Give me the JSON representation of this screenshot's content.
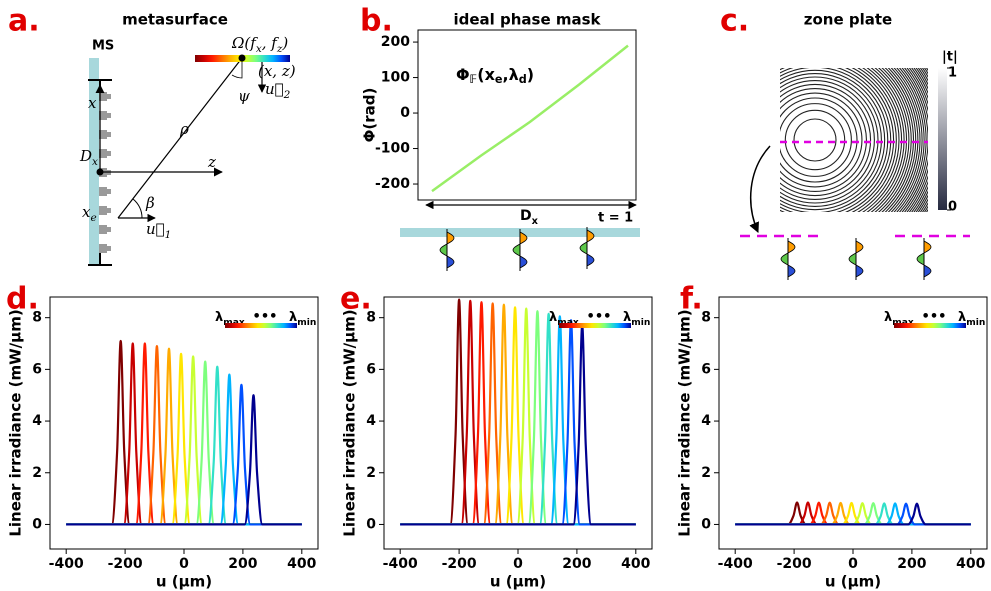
{
  "diagram": {
    "label": "a.",
    "title": "metasurface",
    "ms": "MS",
    "x": "x",
    "dx": [
      "D",
      "x"
    ],
    "z": "z",
    "rho": "ρ",
    "psi": "ψ",
    "beta": "β",
    "xe": [
      "x",
      "e"
    ],
    "u1": [
      "u⃗",
      "1"
    ],
    "u2": [
      "u⃗",
      "2"
    ],
    "omega": [
      "Ω(f",
      "x",
      ", f",
      "z",
      ")"
    ],
    "xz": "(x, z)"
  },
  "zone_plate": {
    "label": "c.",
    "title": "zone plate",
    "colorbar_label": "|t|",
    "colorbar_ticks": [
      0,
      1
    ]
  },
  "chart_data": [
    {
      "type": "line",
      "label": "b.",
      "title": "ideal phase mask",
      "ylabel": "Φ(rad)",
      "values": [
        -220,
        -120,
        -25,
        80,
        190
      ],
      "color": "#99ee66",
      "ylim": [
        -245,
        234
      ],
      "yticks": [
        -200,
        -100,
        0,
        100,
        200
      ],
      "annotation": [
        "Φ",
        "𝔽",
        "(x",
        "e",
        ",λ",
        "d",
        ")"
      ],
      "span_label": [
        "D",
        "x"
      ],
      "footnote": "t = 1"
    },
    {
      "type": "multiline",
      "label": "d.",
      "xlabel": "u (μm)",
      "ylabel": "Linear irradiance (mW/μm)",
      "xlim": [
        -455,
        455
      ],
      "xticks": [
        -400,
        -200,
        0,
        200,
        400
      ],
      "ylim": [
        -0.95,
        8.8
      ],
      "yticks": [
        0,
        2,
        4,
        6,
        8
      ],
      "legend": {
        "start": [
          "λ",
          "max"
        ],
        "dots": "•••",
        "end": [
          "λ",
          "min"
        ]
      },
      "series": [
        {
          "color": "#800000",
          "x": [
            -400,
            -245,
            -227,
            -215,
            -203,
            -185,
            400
          ],
          "values": [
            0,
            0,
            2.84,
            7.1,
            2.84,
            0,
            0
          ]
        },
        {
          "color": "#c80000",
          "x": [
            -400,
            -204,
            -186,
            -174,
            -162,
            -144,
            400
          ],
          "values": [
            0,
            0,
            2.8,
            7.0,
            2.8,
            0,
            0
          ]
        },
        {
          "color": "#ff1a00",
          "x": [
            -400,
            -163,
            -145,
            -133,
            -121,
            -103,
            400
          ],
          "values": [
            0,
            0,
            2.8,
            7.0,
            2.8,
            0,
            0
          ]
        },
        {
          "color": "#ff6400",
          "x": [
            -400,
            -122,
            -104,
            -92,
            -80,
            -62,
            400
          ],
          "values": [
            0,
            0,
            2.76,
            6.9,
            2.76,
            0,
            0
          ]
        },
        {
          "color": "#ffaa00",
          "x": [
            -400,
            -81,
            -63,
            -51,
            -39,
            -21,
            400
          ],
          "values": [
            0,
            0,
            2.72,
            6.8,
            2.72,
            0,
            0
          ]
        },
        {
          "color": "#ffe600",
          "x": [
            -400,
            -40,
            -22,
            -10,
            2,
            20,
            400
          ],
          "values": [
            0,
            0,
            2.64,
            6.6,
            2.64,
            0,
            0
          ]
        },
        {
          "color": "#c8ff32",
          "x": [
            -400,
            1,
            19,
            31,
            43,
            61,
            400
          ],
          "values": [
            0,
            0,
            2.6,
            6.5,
            2.6,
            0,
            0
          ]
        },
        {
          "color": "#7dff7d",
          "x": [
            -400,
            42,
            60,
            72,
            84,
            102,
            400
          ],
          "values": [
            0,
            0,
            2.52,
            6.3,
            2.52,
            0,
            0
          ]
        },
        {
          "color": "#32e0c8",
          "x": [
            -400,
            83,
            101,
            113,
            125,
            143,
            400
          ],
          "values": [
            0,
            0,
            2.44,
            6.1,
            2.44,
            0,
            0
          ]
        },
        {
          "color": "#00b4ff",
          "x": [
            -400,
            124,
            142,
            154,
            166,
            184,
            400
          ],
          "values": [
            0,
            0,
            2.32,
            5.8,
            2.32,
            0,
            0
          ]
        },
        {
          "color": "#0050ff",
          "x": [
            -400,
            165,
            183,
            195,
            207,
            225,
            400
          ],
          "values": [
            0,
            0,
            2.16,
            5.4,
            2.16,
            0,
            0
          ]
        },
        {
          "color": "#00008f",
          "x": [
            -400,
            206,
            224,
            236,
            248,
            266,
            400
          ],
          "values": [
            0,
            0,
            2.0,
            5.0,
            2.0,
            0,
            0
          ]
        }
      ]
    },
    {
      "type": "multiline",
      "label": "e.",
      "xlabel": "u (μm)",
      "ylabel": "Linear irradiance (mW/μm)",
      "xlim": [
        -455,
        455
      ],
      "xticks": [
        -400,
        -200,
        0,
        200,
        400
      ],
      "ylim": [
        -0.95,
        8.8
      ],
      "yticks": [
        0,
        2,
        4,
        6,
        8
      ],
      "legend": {
        "start": [
          "λ",
          "max"
        ],
        "dots": "•••",
        "end": [
          "λ",
          "min"
        ]
      },
      "series": [
        {
          "color": "#800000",
          "x": [
            -400,
            -230,
            -212,
            -200,
            -188,
            -170,
            400
          ],
          "values": [
            0,
            0,
            3.48,
            8.7,
            3.48,
            0,
            0
          ]
        },
        {
          "color": "#c80000",
          "x": [
            -400,
            -192,
            -174,
            -162,
            -150,
            -132,
            400
          ],
          "values": [
            0,
            0,
            3.46,
            8.65,
            3.46,
            0,
            0
          ]
        },
        {
          "color": "#ff1a00",
          "x": [
            -400,
            -154,
            -136,
            -124,
            -112,
            -94,
            400
          ],
          "values": [
            0,
            0,
            3.44,
            8.6,
            3.44,
            0,
            0
          ]
        },
        {
          "color": "#ff6400",
          "x": [
            -400,
            -116,
            -98,
            -86,
            -74,
            -56,
            400
          ],
          "values": [
            0,
            0,
            3.42,
            8.55,
            3.42,
            0,
            0
          ]
        },
        {
          "color": "#ffaa00",
          "x": [
            -400,
            -78,
            -60,
            -48,
            -36,
            -18,
            400
          ],
          "values": [
            0,
            0,
            3.4,
            8.5,
            3.4,
            0,
            0
          ]
        },
        {
          "color": "#ffe600",
          "x": [
            -400,
            -40,
            -22,
            -10,
            2,
            20,
            400
          ],
          "values": [
            0,
            0,
            3.36,
            8.4,
            3.36,
            0,
            0
          ]
        },
        {
          "color": "#c8ff32",
          "x": [
            -400,
            -2,
            16,
            28,
            40,
            58,
            400
          ],
          "values": [
            0,
            0,
            3.34,
            8.35,
            3.34,
            0,
            0
          ]
        },
        {
          "color": "#7dff7d",
          "x": [
            -400,
            36,
            54,
            66,
            78,
            96,
            400
          ],
          "values": [
            0,
            0,
            3.3,
            8.25,
            3.3,
            0,
            0
          ]
        },
        {
          "color": "#32e0c8",
          "x": [
            -400,
            74,
            92,
            104,
            116,
            134,
            400
          ],
          "values": [
            0,
            0,
            3.26,
            8.15,
            3.26,
            0,
            0
          ]
        },
        {
          "color": "#00b4ff",
          "x": [
            -400,
            112,
            130,
            142,
            154,
            172,
            400
          ],
          "values": [
            0,
            0,
            3.22,
            8.05,
            3.22,
            0,
            0
          ]
        },
        {
          "color": "#0050ff",
          "x": [
            -400,
            150,
            168,
            180,
            192,
            210,
            400
          ],
          "values": [
            0,
            0,
            3.16,
            7.9,
            3.16,
            0,
            0
          ]
        },
        {
          "color": "#00008f",
          "x": [
            -400,
            188,
            206,
            218,
            230,
            248,
            400
          ],
          "values": [
            0,
            0,
            3.08,
            7.7,
            3.08,
            0,
            0
          ]
        }
      ]
    },
    {
      "type": "multiline",
      "label": "f.",
      "xlabel": "u (μm)",
      "ylabel": "Linear irradiance (mW/μm)",
      "xlim": [
        -455,
        455
      ],
      "xticks": [
        -400,
        -200,
        0,
        200,
        400
      ],
      "ylim": [
        -0.95,
        8.8
      ],
      "yticks": [
        0,
        2,
        4,
        6,
        8
      ],
      "legend": {
        "start": [
          "λ",
          "max"
        ],
        "dots": "•••",
        "end": [
          "λ",
          "min"
        ]
      },
      "series": [
        {
          "color": "#800000",
          "x": [
            -400,
            -220,
            -202,
            -190,
            -178,
            -160,
            400
          ],
          "values": [
            0,
            0,
            0.34,
            0.85,
            0.34,
            0,
            0
          ]
        },
        {
          "color": "#c80000",
          "x": [
            -400,
            -183,
            -165,
            -153,
            -141,
            -123,
            400
          ],
          "values": [
            0,
            0,
            0.34,
            0.85,
            0.34,
            0,
            0
          ]
        },
        {
          "color": "#ff1a00",
          "x": [
            -400,
            -146,
            -128,
            -116,
            -104,
            -86,
            400
          ],
          "values": [
            0,
            0,
            0.34,
            0.84,
            0.34,
            0,
            0
          ]
        },
        {
          "color": "#ff6400",
          "x": [
            -400,
            -109,
            -91,
            -79,
            -67,
            -49,
            400
          ],
          "values": [
            0,
            0,
            0.34,
            0.84,
            0.34,
            0,
            0
          ]
        },
        {
          "color": "#ffaa00",
          "x": [
            -400,
            -72,
            -54,
            -42,
            -30,
            -12,
            400
          ],
          "values": [
            0,
            0,
            0.33,
            0.83,
            0.33,
            0,
            0
          ]
        },
        {
          "color": "#ffe600",
          "x": [
            -400,
            -35,
            -17,
            -5,
            7,
            25,
            400
          ],
          "values": [
            0,
            0,
            0.33,
            0.83,
            0.33,
            0,
            0
          ]
        },
        {
          "color": "#c8ff32",
          "x": [
            -400,
            2,
            20,
            32,
            44,
            62,
            400
          ],
          "values": [
            0,
            0,
            0.33,
            0.82,
            0.33,
            0,
            0
          ]
        },
        {
          "color": "#7dff7d",
          "x": [
            -400,
            39,
            57,
            69,
            81,
            99,
            400
          ],
          "values": [
            0,
            0,
            0.33,
            0.82,
            0.33,
            0,
            0
          ]
        },
        {
          "color": "#32e0c8",
          "x": [
            -400,
            76,
            94,
            106,
            118,
            136,
            400
          ],
          "values": [
            0,
            0,
            0.32,
            0.81,
            0.32,
            0,
            0
          ]
        },
        {
          "color": "#00b4ff",
          "x": [
            -400,
            113,
            131,
            143,
            155,
            173,
            400
          ],
          "values": [
            0,
            0,
            0.32,
            0.81,
            0.32,
            0,
            0
          ]
        },
        {
          "color": "#0050ff",
          "x": [
            -400,
            150,
            168,
            180,
            192,
            210,
            400
          ],
          "values": [
            0,
            0,
            0.32,
            0.8,
            0.32,
            0,
            0
          ]
        },
        {
          "color": "#00008f",
          "x": [
            -400,
            187,
            205,
            217,
            229,
            247,
            400
          ],
          "values": [
            0,
            0,
            0.32,
            0.8,
            0.32,
            0,
            0
          ]
        }
      ]
    }
  ]
}
